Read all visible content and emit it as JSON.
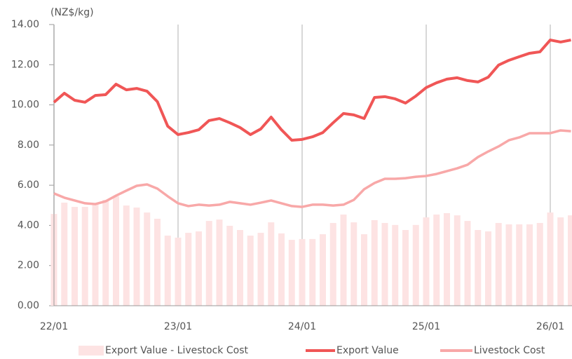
{
  "chart_data": {
    "type": "bar_line",
    "unit_label": "(NZ$/kg)",
    "categories": [
      "22/01",
      null,
      null,
      null,
      null,
      null,
      null,
      null,
      null,
      null,
      null,
      null,
      "23/01",
      null,
      null,
      null,
      null,
      null,
      null,
      null,
      null,
      null,
      null,
      null,
      "24/01",
      null,
      null,
      null,
      null,
      null,
      null,
      null,
      null,
      null,
      null,
      null,
      "25/01",
      null,
      null,
      null,
      null,
      null,
      null,
      null,
      null,
      null,
      null,
      null,
      "26/01",
      null,
      null
    ],
    "series": [
      {
        "name": "Export Value - Livestock Cost",
        "kind": "bar",
        "color": "#fde3e3",
        "values": [
          4.57,
          5.13,
          4.92,
          4.92,
          5.1,
          5.27,
          5.45,
          4.99,
          4.89,
          4.64,
          4.33,
          3.49,
          3.39,
          3.63,
          3.7,
          4.22,
          4.29,
          3.98,
          3.77,
          3.49,
          3.63,
          4.15,
          3.6,
          3.28,
          3.32,
          3.32,
          3.56,
          4.12,
          4.54,
          4.15,
          3.56,
          4.26,
          4.12,
          4.02,
          3.77,
          4.02,
          4.4,
          4.54,
          4.61,
          4.5,
          4.22,
          3.77,
          3.7,
          4.12,
          4.05,
          4.05,
          4.05,
          4.12,
          4.64,
          4.4,
          4.5
        ]
      },
      {
        "name": "Export Value",
        "kind": "line",
        "color": "#f05656",
        "values": [
          10.13,
          10.58,
          10.23,
          10.13,
          10.47,
          10.51,
          11.03,
          10.75,
          10.82,
          10.68,
          10.16,
          8.94,
          8.52,
          8.62,
          8.76,
          9.22,
          9.32,
          9.11,
          8.87,
          8.52,
          8.8,
          9.39,
          8.76,
          8.24,
          8.28,
          8.41,
          8.62,
          9.11,
          9.57,
          9.5,
          9.32,
          10.37,
          10.41,
          10.3,
          10.09,
          10.44,
          10.86,
          11.1,
          11.28,
          11.35,
          11.21,
          11.14,
          11.38,
          11.98,
          12.22,
          12.4,
          12.57,
          12.64,
          13.23,
          13.13,
          13.23
        ]
      },
      {
        "name": "Livestock Cost",
        "kind": "line",
        "color": "#f8a8a8",
        "values": [
          5.59,
          5.38,
          5.24,
          5.1,
          5.06,
          5.2,
          5.48,
          5.73,
          5.97,
          6.04,
          5.83,
          5.45,
          5.1,
          4.96,
          5.03,
          4.99,
          5.03,
          5.17,
          5.1,
          5.03,
          5.13,
          5.24,
          5.1,
          4.96,
          4.92,
          5.03,
          5.03,
          4.99,
          5.03,
          5.27,
          5.8,
          6.11,
          6.32,
          6.32,
          6.35,
          6.42,
          6.46,
          6.56,
          6.7,
          6.84,
          7.02,
          7.4,
          7.68,
          7.93,
          8.24,
          8.38,
          8.59,
          8.59,
          8.59,
          8.73,
          8.69
        ]
      }
    ],
    "ylim": [
      0,
      14
    ],
    "yticks": [
      {
        "value": 0,
        "label": "0.00"
      },
      {
        "value": 2,
        "label": "2.00"
      },
      {
        "value": 4,
        "label": "4.00"
      },
      {
        "value": 6,
        "label": "6.00"
      },
      {
        "value": 8,
        "label": "8.00"
      },
      {
        "value": 10,
        "label": "10.00"
      },
      {
        "value": 12,
        "label": "12.00"
      },
      {
        "value": 14,
        "label": "14.00"
      }
    ],
    "grid": "x"
  }
}
